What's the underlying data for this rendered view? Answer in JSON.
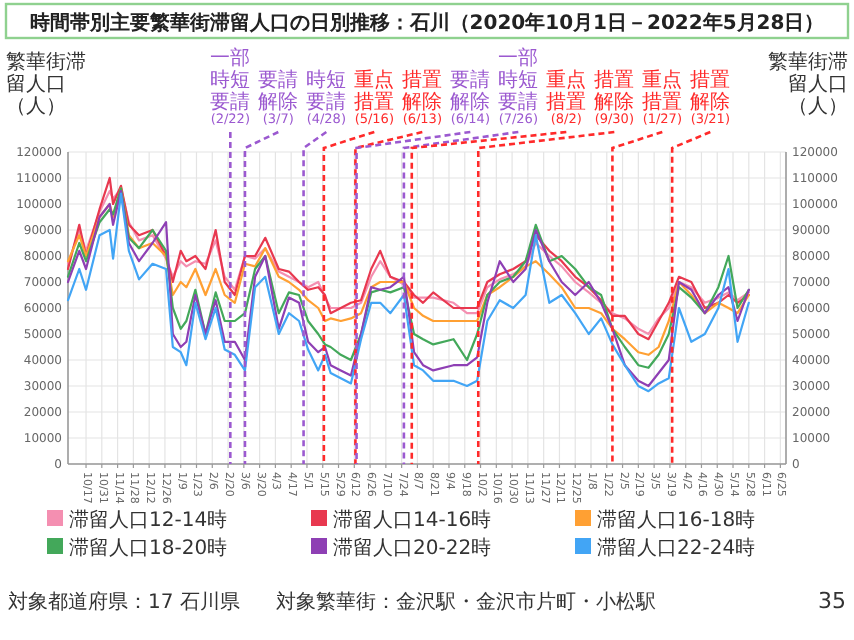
{
  "chart_data": {
    "type": "line",
    "title": "時間帯別主要繁華街滞留人口の日別推移：石川（2020年10月1日－2022年5月28日）",
    "ylabel": "繁華街滞留人口（人）",
    "y2label": "繁華街滞留人口（人）",
    "x": [
      "2020-10-01",
      "2020-10-11",
      "2020-10-17",
      "2020-10-29",
      "2020-11-07",
      "2020-11-10",
      "2020-11-17",
      "2020-11-24",
      "2020-12-03",
      "2020-12-15",
      "2020-12-27",
      "2021-01-02",
      "2021-01-09",
      "2021-01-14",
      "2021-01-22",
      "2021-01-31",
      "2021-02-09",
      "2021-02-17",
      "2021-02-26",
      "2021-03-07",
      "2021-03-16",
      "2021-03-25",
      "2021-04-06",
      "2021-04-15",
      "2021-04-24",
      "2021-05-02",
      "2021-05-11",
      "2021-05-17",
      "2021-05-22",
      "2021-05-31",
      "2021-06-09",
      "2021-06-18",
      "2021-06-27",
      "2021-07-05",
      "2021-07-14",
      "2021-07-26",
      "2021-08-04",
      "2021-08-12",
      "2021-08-21",
      "2021-09-08",
      "2021-09-20",
      "2021-09-29",
      "2021-10-08",
      "2021-10-19",
      "2021-10-31",
      "2021-11-11",
      "2021-11-20",
      "2021-12-02",
      "2021-12-13",
      "2021-12-25",
      "2022-01-06",
      "2022-01-17",
      "2022-01-27",
      "2022-02-07",
      "2022-02-19",
      "2022-02-28",
      "2022-03-09",
      "2022-03-18",
      "2022-03-27",
      "2022-04-07",
      "2022-04-19",
      "2022-05-01",
      "2022-05-10",
      "2022-05-18",
      "2022-05-28"
    ],
    "xlim": [
      "2020-10-01",
      "2022-06-30"
    ],
    "xticks": [
      {
        "value": "2020-10-17",
        "label": "10/17"
      },
      {
        "value": "2020-10-31",
        "label": "10/31"
      },
      {
        "value": "2020-11-14",
        "label": "11/14"
      },
      {
        "value": "2020-11-28",
        "label": "11/28"
      },
      {
        "value": "2020-12-12",
        "label": "12/12"
      },
      {
        "value": "2020-12-26",
        "label": "12/26"
      },
      {
        "value": "2021-01-09",
        "label": "1/9"
      },
      {
        "value": "2021-01-23",
        "label": "1/23"
      },
      {
        "value": "2021-02-06",
        "label": "2/6"
      },
      {
        "value": "2021-02-20",
        "label": "2/20"
      },
      {
        "value": "2021-03-06",
        "label": "3/6"
      },
      {
        "value": "2021-03-20",
        "label": "3/20"
      },
      {
        "value": "2021-04-03",
        "label": "4/3"
      },
      {
        "value": "2021-04-17",
        "label": "4/17"
      },
      {
        "value": "2021-05-01",
        "label": "5/1"
      },
      {
        "value": "2021-05-15",
        "label": "5/15"
      },
      {
        "value": "2021-05-29",
        "label": "5/29"
      },
      {
        "value": "2021-06-12",
        "label": "6/12"
      },
      {
        "value": "2021-06-26",
        "label": "6/26"
      },
      {
        "value": "2021-07-10",
        "label": "7/10"
      },
      {
        "value": "2021-07-24",
        "label": "7/24"
      },
      {
        "value": "2021-08-07",
        "label": "8/7"
      },
      {
        "value": "2021-08-21",
        "label": "8/21"
      },
      {
        "value": "2021-09-04",
        "label": "9/4"
      },
      {
        "value": "2021-09-18",
        "label": "9/18"
      },
      {
        "value": "2021-10-02",
        "label": "10/2"
      },
      {
        "value": "2021-10-16",
        "label": "10/16"
      },
      {
        "value": "2021-10-30",
        "label": "10/30"
      },
      {
        "value": "2021-11-13",
        "label": "11/13"
      },
      {
        "value": "2021-11-27",
        "label": "11/27"
      },
      {
        "value": "2021-12-11",
        "label": "12/11"
      },
      {
        "value": "2021-12-25",
        "label": "12/25"
      },
      {
        "value": "2022-01-08",
        "label": "1/8"
      },
      {
        "value": "2022-01-22",
        "label": "1/22"
      },
      {
        "value": "2022-02-05",
        "label": "2/5"
      },
      {
        "value": "2022-02-19",
        "label": "2/19"
      },
      {
        "value": "2022-03-05",
        "label": "3/5"
      },
      {
        "value": "2022-03-19",
        "label": "3/19"
      },
      {
        "value": "2022-04-02",
        "label": "4/2"
      },
      {
        "value": "2022-04-16",
        "label": "4/16"
      },
      {
        "value": "2022-04-30",
        "label": "4/30"
      },
      {
        "value": "2022-05-14",
        "label": "5/14"
      },
      {
        "value": "2022-05-28",
        "label": "5/28"
      },
      {
        "value": "2022-06-11",
        "label": "6/11"
      },
      {
        "value": "2022-06-25",
        "label": "6/25"
      }
    ],
    "ylim": [
      0,
      120000
    ],
    "yticks": [
      0,
      10000,
      20000,
      30000,
      40000,
      50000,
      60000,
      70000,
      80000,
      90000,
      100000,
      110000,
      120000
    ],
    "y2lim": [
      0,
      120000
    ],
    "y2ticks": [
      0,
      10000,
      20000,
      30000,
      40000,
      50000,
      60000,
      70000,
      80000,
      90000,
      100000,
      110000,
      120000
    ],
    "grid": true,
    "legend": "bottom",
    "line_style": "solid",
    "series": [
      {
        "name": "滞留人口12-14時",
        "color": "#f48fb1",
        "values": [
          77000,
          90000,
          82000,
          97000,
          105000,
          102000,
          106000,
          93000,
          86000,
          88000,
          79000,
          72000,
          78000,
          76000,
          78000,
          77000,
          86000,
          72000,
          67000,
          80000,
          79000,
          83000,
          74000,
          72000,
          70000,
          68000,
          70000,
          64000,
          60000,
          60000,
          60000,
          62000,
          72000,
          78000,
          72000,
          69000,
          64000,
          64000,
          64000,
          62000,
          58000,
          58000,
          68000,
          71000,
          73000,
          76000,
          85000,
          80000,
          76000,
          70000,
          66000,
          62000,
          58000,
          56000,
          52000,
          50000,
          56000,
          60000,
          70000,
          68000,
          62000,
          64000,
          66000,
          63000,
          66000
        ]
      },
      {
        "name": "滞留人口14-16時",
        "color": "#e8384f",
        "values": [
          75000,
          92000,
          80000,
          98000,
          110000,
          100000,
          107000,
          92000,
          88000,
          90000,
          80000,
          70000,
          82000,
          78000,
          80000,
          75000,
          90000,
          70000,
          65000,
          80000,
          80000,
          87000,
          75000,
          74000,
          70000,
          67000,
          68000,
          65000,
          58000,
          60000,
          62000,
          63000,
          75000,
          82000,
          72000,
          70000,
          65000,
          62000,
          66000,
          60000,
          60000,
          60000,
          70000,
          73000,
          75000,
          78000,
          88000,
          82000,
          78000,
          72000,
          68000,
          63000,
          57000,
          57000,
          50000,
          48000,
          55000,
          62000,
          72000,
          70000,
          60000,
          62000,
          65000,
          62000,
          65000
        ]
      },
      {
        "name": "滞留人口16-18時",
        "color": "#ffa033",
        "values": [
          78000,
          88000,
          80000,
          95000,
          100000,
          95000,
          106000,
          88000,
          83000,
          85000,
          80000,
          65000,
          70000,
          68000,
          75000,
          65000,
          75000,
          65000,
          62000,
          77000,
          76000,
          83000,
          72000,
          70000,
          67000,
          63000,
          60000,
          55000,
          56000,
          55000,
          56000,
          58000,
          68000,
          70000,
          70000,
          70000,
          60000,
          57000,
          55000,
          55000,
          55000,
          55000,
          65000,
          68000,
          72000,
          76000,
          78000,
          73000,
          68000,
          60000,
          60000,
          58000,
          52000,
          48000,
          43000,
          42000,
          45000,
          55000,
          70000,
          65000,
          58000,
          62000,
          60000,
          58000,
          65000
        ]
      },
      {
        "name": "滞留人口18-20時",
        "color": "#43a85a",
        "values": [
          72000,
          85000,
          78000,
          93000,
          98000,
          96000,
          106000,
          87000,
          83000,
          90000,
          82000,
          60000,
          52000,
          55000,
          67000,
          50000,
          66000,
          55000,
          55000,
          58000,
          75000,
          80000,
          58000,
          66000,
          65000,
          55000,
          50000,
          46000,
          45000,
          42000,
          40000,
          50000,
          66000,
          67000,
          66000,
          68000,
          50000,
          48000,
          46000,
          48000,
          40000,
          50000,
          65000,
          70000,
          72000,
          78000,
          92000,
          78000,
          80000,
          75000,
          68000,
          65000,
          52000,
          45000,
          38000,
          37000,
          42000,
          50000,
          68000,
          64000,
          58000,
          68000,
          80000,
          60000,
          67000
        ]
      },
      {
        "name": "滞留人口20-22時",
        "color": "#8e3fb4",
        "values": [
          70000,
          82000,
          75000,
          95000,
          100000,
          92000,
          105000,
          85000,
          78000,
          85000,
          93000,
          50000,
          45000,
          47000,
          65000,
          50000,
          63000,
          47000,
          47000,
          40000,
          72000,
          80000,
          52000,
          64000,
          62000,
          47000,
          43000,
          45000,
          38000,
          36000,
          34000,
          50000,
          68000,
          67000,
          68000,
          72000,
          43000,
          38000,
          36000,
          38000,
          38000,
          41000,
          62000,
          78000,
          70000,
          75000,
          90000,
          78000,
          70000,
          65000,
          70000,
          62000,
          52000,
          38000,
          32000,
          30000,
          35000,
          40000,
          70000,
          67000,
          58000,
          65000,
          68000,
          55000,
          67000
        ]
      },
      {
        "name": "滞留人口22-24時",
        "color": "#42a5f5",
        "values": [
          63000,
          75000,
          67000,
          88000,
          90000,
          79000,
          104000,
          82000,
          71000,
          77000,
          75000,
          45000,
          43000,
          38000,
          62000,
          48000,
          60000,
          44000,
          42000,
          36000,
          68000,
          72000,
          50000,
          58000,
          55000,
          44000,
          36000,
          42000,
          35000,
          33000,
          31000,
          48000,
          62000,
          62000,
          58000,
          65000,
          38000,
          36000,
          32000,
          32000,
          30000,
          32000,
          55000,
          63000,
          60000,
          65000,
          88000,
          62000,
          65000,
          58000,
          50000,
          56000,
          46000,
          38000,
          30000,
          28000,
          31000,
          33000,
          60000,
          47000,
          50000,
          60000,
          75000,
          47000,
          62000
        ]
      }
    ],
    "ref_lines": [
      {
        "axis": "x",
        "value": "2021-02-22",
        "label": "一部時短要請(2/22)",
        "color": "#9b59d0",
        "line_style": "dashed"
      },
      {
        "axis": "x",
        "value": "2021-03-07",
        "label": "要請解除(3/7)",
        "color": "#9b59d0",
        "line_style": "dashed"
      },
      {
        "axis": "x",
        "value": "2021-04-28",
        "label": "時短要請(4/28)",
        "color": "#9b59d0",
        "line_style": "dashed"
      },
      {
        "axis": "x",
        "value": "2021-05-16",
        "label": "重点措置(5/16)",
        "color": "#ff2a2a",
        "line_style": "dashed"
      },
      {
        "axis": "x",
        "value": "2021-06-13",
        "label": "措置解除(6/13)",
        "color": "#ff2a2a",
        "line_style": "dashed"
      },
      {
        "axis": "x",
        "value": "2021-06-14",
        "label": "要請解除(6/14)",
        "color": "#9b59d0",
        "line_style": "dashed"
      },
      {
        "axis": "x",
        "value": "2021-07-26",
        "label": "一部時短要請(7/26)",
        "color": "#9b59d0",
        "line_style": "dashed"
      },
      {
        "axis": "x",
        "value": "2021-08-02",
        "label": "重点措置(8/2)",
        "color": "#ff2a2a",
        "line_style": "dashed"
      },
      {
        "axis": "x",
        "value": "2021-09-30",
        "label": "措置解除(9/30)",
        "color": "#ff2a2a",
        "line_style": "dashed"
      },
      {
        "axis": "x",
        "value": "2022-01-27",
        "label": "重点措置(1/27)",
        "color": "#ff2a2a",
        "line_style": "dashed"
      },
      {
        "axis": "x",
        "value": "2022-03-21",
        "label": "措置解除(3/21)",
        "color": "#ff2a2a",
        "line_style": "dashed"
      }
    ],
    "annotations": [
      "対象都道府県：17 石川県",
      "対象繁華街：金沢駅・金沢市片町・小松駅",
      "35"
    ]
  }
}
